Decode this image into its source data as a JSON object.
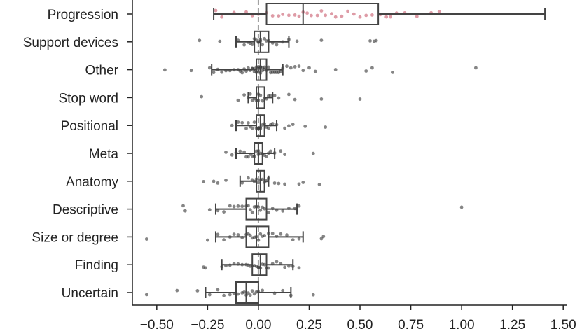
{
  "chart_data": {
    "type": "box",
    "orientation": "horizontal",
    "title": "",
    "xlabel": "",
    "ylabel": "",
    "xlim": [
      -0.62,
      1.52
    ],
    "xticks": [
      -0.5,
      -0.25,
      0.0,
      0.25,
      0.5,
      0.75,
      1.0,
      1.25,
      1.5
    ],
    "xtick_labels": [
      "−0.50",
      "−0.25",
      "0.00",
      "0.25",
      "0.50",
      "0.75",
      "1.00",
      "1.25",
      "1.50"
    ],
    "reference_line_x": 0.0,
    "colors": {
      "highlight": "#d88a96",
      "points": "#333333",
      "box": "#444444",
      "reference": "#999999"
    },
    "categories": [
      {
        "name": "Progression",
        "highlight": true,
        "whisker_low": -0.22,
        "q1": 0.04,
        "median": 0.22,
        "q3": 0.59,
        "whisker_high": 1.41,
        "points": [
          -0.21,
          -0.18,
          -0.12,
          -0.06,
          -0.03,
          0.0,
          0.04,
          0.07,
          0.1,
          0.12,
          0.15,
          0.18,
          0.2,
          0.22,
          0.24,
          0.26,
          0.29,
          0.31,
          0.33,
          0.36,
          0.38,
          0.41,
          0.44,
          0.47,
          0.5,
          0.53,
          0.56,
          0.6,
          0.63,
          0.65,
          0.68,
          0.72,
          0.78,
          0.85,
          0.89
        ]
      },
      {
        "name": "Support devices",
        "highlight": false,
        "whisker_low": -0.11,
        "q1": -0.02,
        "median": 0.01,
        "q3": 0.05,
        "whisker_high": 0.15,
        "points": [
          -0.29,
          -0.19,
          -0.1,
          -0.07,
          -0.05,
          -0.04,
          -0.03,
          -0.02,
          -0.01,
          0.0,
          0.0,
          0.01,
          0.01,
          0.02,
          0.03,
          0.04,
          0.05,
          0.07,
          0.09,
          0.12,
          0.15,
          0.19,
          0.31,
          0.55,
          0.57,
          0.58
        ]
      },
      {
        "name": "Other",
        "highlight": false,
        "whisker_low": -0.23,
        "q1": -0.01,
        "median": 0.01,
        "q3": 0.04,
        "whisker_high": 0.12,
        "points": [
          -0.46,
          -0.33,
          -0.24,
          -0.22,
          -0.2,
          -0.18,
          -0.16,
          -0.14,
          -0.12,
          -0.1,
          -0.09,
          -0.08,
          -0.07,
          -0.06,
          -0.05,
          -0.04,
          -0.03,
          -0.03,
          -0.02,
          -0.02,
          -0.01,
          -0.01,
          0.0,
          0.0,
          0.0,
          0.01,
          0.01,
          0.01,
          0.02,
          0.02,
          0.03,
          0.03,
          0.04,
          0.05,
          0.06,
          0.07,
          0.08,
          0.09,
          0.1,
          0.11,
          0.12,
          0.14,
          0.16,
          0.18,
          0.2,
          0.22,
          0.25,
          0.28,
          0.38,
          0.53,
          0.56,
          0.66,
          1.07
        ]
      },
      {
        "name": "Stop word",
        "highlight": false,
        "whisker_low": -0.05,
        "q1": -0.01,
        "median": 0.0,
        "q3": 0.03,
        "whisker_high": 0.07,
        "points": [
          -0.28,
          -0.1,
          -0.07,
          -0.05,
          -0.04,
          -0.03,
          -0.02,
          -0.01,
          0.0,
          0.0,
          0.01,
          0.02,
          0.03,
          0.04,
          0.05,
          0.06,
          0.08,
          0.1,
          0.15,
          0.18,
          0.31,
          0.5
        ]
      },
      {
        "name": "Positional",
        "highlight": false,
        "whisker_low": -0.11,
        "q1": -0.01,
        "median": 0.01,
        "q3": 0.03,
        "whisker_high": 0.09,
        "points": [
          -0.13,
          -0.1,
          -0.08,
          -0.06,
          -0.05,
          -0.04,
          -0.03,
          -0.02,
          -0.01,
          0.0,
          0.0,
          0.01,
          0.01,
          0.02,
          0.03,
          0.04,
          0.05,
          0.06,
          0.07,
          0.09,
          0.13,
          0.15,
          0.17,
          0.23,
          0.33
        ]
      },
      {
        "name": "Meta",
        "highlight": false,
        "whisker_low": -0.11,
        "q1": -0.02,
        "median": 0.0,
        "q3": 0.02,
        "whisker_high": 0.08,
        "points": [
          -0.16,
          -0.13,
          -0.11,
          -0.09,
          -0.07,
          -0.06,
          -0.05,
          -0.04,
          -0.03,
          -0.02,
          -0.01,
          0.0,
          0.0,
          0.01,
          0.02,
          0.03,
          0.04,
          0.05,
          0.06,
          0.08,
          0.11,
          0.13,
          0.27
        ]
      },
      {
        "name": "Anatomy",
        "highlight": false,
        "whisker_low": -0.09,
        "q1": -0.01,
        "median": 0.01,
        "q3": 0.03,
        "whisker_high": 0.05,
        "points": [
          -0.27,
          -0.22,
          -0.2,
          -0.16,
          -0.08,
          -0.05,
          -0.03,
          -0.02,
          -0.01,
          0.0,
          0.01,
          0.02,
          0.03,
          0.04,
          0.05,
          0.08,
          0.1,
          0.13,
          0.2,
          0.22,
          0.3
        ]
      },
      {
        "name": "Descriptive",
        "highlight": false,
        "whisker_low": -0.21,
        "q1": -0.06,
        "median": -0.01,
        "q3": 0.04,
        "whisker_high": 0.19,
        "points": [
          -0.37,
          -0.36,
          -0.24,
          -0.2,
          -0.17,
          -0.14,
          -0.12,
          -0.1,
          -0.08,
          -0.06,
          -0.05,
          -0.04,
          -0.03,
          -0.02,
          -0.01,
          0.0,
          0.01,
          0.02,
          0.03,
          0.05,
          0.07,
          0.09,
          0.12,
          0.15,
          0.18,
          0.2,
          1.0
        ]
      },
      {
        "name": "Size or degree",
        "highlight": false,
        "whisker_low": -0.21,
        "q1": -0.06,
        "median": -0.01,
        "q3": 0.05,
        "whisker_high": 0.22,
        "points": [
          -0.55,
          -0.25,
          -0.2,
          -0.17,
          -0.14,
          -0.12,
          -0.1,
          -0.08,
          -0.06,
          -0.05,
          -0.04,
          -0.03,
          -0.02,
          -0.01,
          0.0,
          0.01,
          0.02,
          0.03,
          0.05,
          0.07,
          0.09,
          0.11,
          0.14,
          0.17,
          0.2,
          0.31,
          0.32
        ]
      },
      {
        "name": "Finding",
        "highlight": false,
        "whisker_low": -0.18,
        "q1": -0.03,
        "median": 0.01,
        "q3": 0.04,
        "whisker_high": 0.17,
        "points": [
          -0.27,
          -0.26,
          -0.18,
          -0.16,
          -0.14,
          -0.12,
          -0.1,
          -0.08,
          -0.06,
          -0.05,
          -0.04,
          -0.03,
          -0.02,
          -0.01,
          0.0,
          0.0,
          0.01,
          0.02,
          0.03,
          0.04,
          0.05,
          0.07,
          0.09,
          0.11,
          0.13,
          0.15,
          0.17,
          0.2
        ]
      },
      {
        "name": "Uncertain",
        "highlight": false,
        "whisker_low": -0.26,
        "q1": -0.11,
        "median": -0.06,
        "q3": 0.0,
        "whisker_high": 0.16,
        "points": [
          -0.55,
          -0.4,
          -0.3,
          -0.24,
          -0.2,
          -0.17,
          -0.14,
          -0.12,
          -0.1,
          -0.08,
          -0.07,
          -0.06,
          -0.05,
          -0.04,
          -0.03,
          -0.02,
          -0.01,
          0.0,
          0.02,
          0.08,
          0.12,
          0.16,
          0.27
        ]
      }
    ]
  }
}
